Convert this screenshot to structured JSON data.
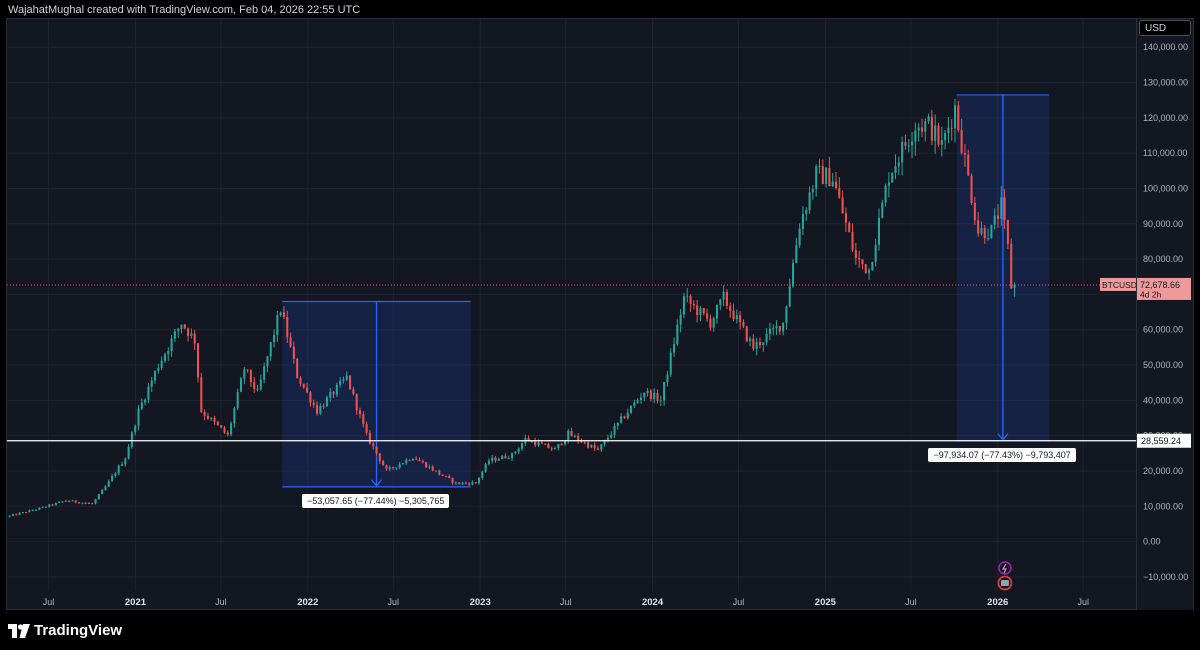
{
  "header": {
    "text": "WajahatMughal created with TradingView.com, Feb 04, 2026 22:55 UTC"
  },
  "currency": "USD",
  "symbol": "BTCUSD",
  "last_price": {
    "value": "72,678.66",
    "countdown": "4d 2h"
  },
  "horizontal_line": {
    "label": "28,559.24",
    "value": 28559.24
  },
  "brand": {
    "name": "TradingView"
  },
  "colors": {
    "background": "#131722",
    "up": "#26a69a",
    "down": "#ef5350",
    "box_fill": "#1e3a8a",
    "box_border": "#2962ff"
  },
  "annotations": [
    {
      "label": "−53,057.65 (−77.44%) −5,305,765",
      "start_date": "2021-11-08",
      "end_date": "2022-12-12",
      "high": 68000,
      "low": 15500
    },
    {
      "label": "−97,934.07 (−77.43%) −9,793,407",
      "start_date": "2025-10-06",
      "end_date": "2026-04-20",
      "high": 126500,
      "low": 28559.24
    }
  ],
  "chart_data": {
    "type": "candlestick",
    "title": "",
    "xlabel": "",
    "ylabel": "",
    "x_ticks": [
      {
        "label": "Jul",
        "date": "2020-07-01",
        "bold": false
      },
      {
        "label": "2021",
        "date": "2021-01-01",
        "bold": true
      },
      {
        "label": "Jul",
        "date": "2021-07-01",
        "bold": false
      },
      {
        "label": "2022",
        "date": "2022-01-01",
        "bold": true
      },
      {
        "label": "Jul",
        "date": "2022-07-01",
        "bold": false
      },
      {
        "label": "2023",
        "date": "2023-01-01",
        "bold": true
      },
      {
        "label": "Jul",
        "date": "2023-07-01",
        "bold": false
      },
      {
        "label": "2024",
        "date": "2024-01-01",
        "bold": true
      },
      {
        "label": "Jul",
        "date": "2024-07-01",
        "bold": false
      },
      {
        "label": "2025",
        "date": "2025-01-01",
        "bold": true
      },
      {
        "label": "Jul",
        "date": "2025-07-01",
        "bold": false
      },
      {
        "label": "2026",
        "date": "2026-01-01",
        "bold": true
      },
      {
        "label": "Jul",
        "date": "2026-07-01",
        "bold": false
      }
    ],
    "y_ticks": [
      "−10,000.00",
      "0.00",
      "10,000.00",
      "20,000.00",
      "30,000.00",
      "40,000.00",
      "50,000.00",
      "60,000.00",
      "70,000.00",
      "80,000.00",
      "90,000.00",
      "100,000.00",
      "110,000.00",
      "120,000.00",
      "130,000.00",
      "140,000.00"
    ],
    "ylim": [
      -14000,
      148000
    ],
    "xlim": [
      "2020-04-04",
      "2026-10-25"
    ],
    "grid": true,
    "interval": "weekly",
    "price_path": [
      [
        "2020-04-06",
        7000
      ],
      [
        "2020-06-15",
        9400
      ],
      [
        "2020-08-10",
        11600
      ],
      [
        "2020-10-05",
        10700
      ],
      [
        "2020-11-02",
        15500
      ],
      [
        "2020-12-14",
        23800
      ],
      [
        "2021-01-11",
        37000
      ],
      [
        "2021-02-22",
        50000
      ],
      [
        "2021-04-12",
        62000
      ],
      [
        "2021-05-10",
        57000
      ],
      [
        "2021-05-24",
        37000
      ],
      [
        "2021-07-19",
        30000
      ],
      [
        "2021-08-23",
        49000
      ],
      [
        "2021-09-20",
        42000
      ],
      [
        "2021-11-08",
        66000
      ],
      [
        "2021-12-13",
        47000
      ],
      [
        "2022-01-24",
        37000
      ],
      [
        "2022-03-28",
        46500
      ],
      [
        "2022-05-09",
        30000
      ],
      [
        "2022-06-20",
        20000
      ],
      [
        "2022-08-15",
        24000
      ],
      [
        "2022-10-10",
        19200
      ],
      [
        "2022-11-14",
        16500
      ],
      [
        "2022-12-26",
        16600
      ],
      [
        "2023-01-23",
        23000
      ],
      [
        "2023-03-13",
        24500
      ],
      [
        "2023-04-10",
        29000
      ],
      [
        "2023-06-12",
        26000
      ],
      [
        "2023-07-10",
        30500
      ],
      [
        "2023-09-11",
        25800
      ],
      [
        "2023-10-30",
        34500
      ],
      [
        "2023-12-18",
        42500
      ],
      [
        "2024-01-22",
        40000
      ],
      [
        "2024-03-11",
        69000
      ],
      [
        "2024-05-06",
        62000
      ],
      [
        "2024-06-03",
        69000
      ],
      [
        "2024-08-05",
        55000
      ],
      [
        "2024-10-07",
        62000
      ],
      [
        "2024-11-11",
        90000
      ],
      [
        "2024-12-16",
        104000
      ],
      [
        "2025-01-20",
        103000
      ],
      [
        "2025-03-10",
        80000
      ],
      [
        "2025-04-07",
        77000
      ],
      [
        "2025-05-19",
        104000
      ],
      [
        "2025-07-14",
        118000
      ],
      [
        "2025-08-11",
        118000
      ],
      [
        "2025-09-08",
        112000
      ],
      [
        "2025-10-06",
        123000
      ],
      [
        "2025-11-03",
        103000
      ],
      [
        "2025-11-24",
        88000
      ],
      [
        "2025-12-22",
        88000
      ],
      [
        "2026-01-12",
        95000
      ],
      [
        "2026-01-26",
        83000
      ],
      [
        "2026-02-02",
        72678.66
      ]
    ]
  }
}
